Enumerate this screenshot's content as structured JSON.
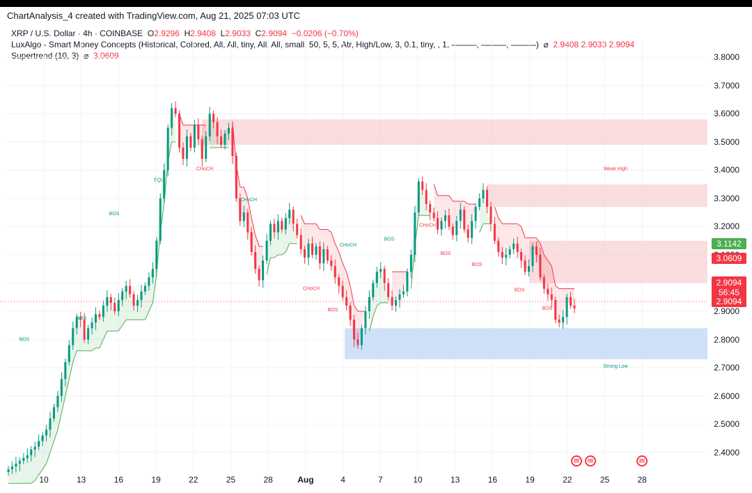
{
  "header": {
    "title": "ChartAnalysis_4 created with TradingView.com, Aug 21, 2025 07:03 UTC"
  },
  "legend": {
    "symbol": "XRP / U.S. Dollar · 4h · COINBASE",
    "o_label": "O",
    "o_value": "2.9296",
    "h_label": "H",
    "h_value": "2.9408",
    "l_label": "L",
    "l_value": "2.9033",
    "c_label": "C",
    "c_value": "2.9094",
    "change": "−0.0206 (−0.70%)",
    "indicator1": "LuxAlgo - Smart Money Concepts (Historical, Colored, All, All, tiny, All, All, small, 50, 5, 5, Atr, High/Low, 3, 0.1, tiny, , 1, ———, ———, ———)",
    "indicator1_symbol": "⌀",
    "indicator1_values": "2.9408  2.9033  2.9094",
    "indicator2": "Supertrend (10, 3)",
    "indicator2_symbol": "⌀",
    "indicator2_value": "3.0609"
  },
  "price_badges": {
    "green": "3.1142",
    "red": "3.0609",
    "current_price": "2.9094",
    "countdown": "56:45",
    "current_price_2": "2.9094"
  },
  "colors": {
    "up": "#089981",
    "down": "#f23645",
    "supertrend_up": "#4caf50",
    "supertrend_down": "#f23645",
    "supply_zone": "#f7c6c9",
    "demand_zone": "#c7dcf7",
    "grid": "#f0f3fa"
  },
  "chart_data": {
    "type": "candlestick",
    "title": "XRP / U.S. Dollar · 4h · COINBASE",
    "ylim": [
      2.33,
      3.86
    ],
    "yticks": [
      "3.8000",
      "3.7000",
      "3.6000",
      "3.5000",
      "3.4000",
      "3.3000",
      "3.2000",
      "3.1000",
      "3.0000",
      "2.9000",
      "2.8000",
      "2.7000",
      "2.6000",
      "2.5000",
      "2.4000"
    ],
    "xticks": [
      "10",
      "13",
      "16",
      "19",
      "22",
      "25",
      "28",
      "Aug",
      "4",
      "7",
      "10",
      "13",
      "16",
      "19",
      "22",
      "25",
      "28"
    ],
    "grid": true,
    "closes": [
      2.34,
      2.35,
      2.36,
      2.37,
      2.38,
      2.39,
      2.41,
      2.42,
      2.44,
      2.46,
      2.48,
      2.52,
      2.56,
      2.6,
      2.66,
      2.72,
      2.78,
      2.84,
      2.88,
      2.87,
      2.8,
      2.84,
      2.86,
      2.89,
      2.88,
      2.92,
      2.95,
      2.93,
      2.9,
      2.94,
      2.97,
      2.99,
      2.96,
      2.92,
      2.94,
      2.97,
      2.99,
      3.02,
      3.05,
      3.15,
      3.3,
      3.4,
      3.55,
      3.62,
      3.6,
      3.48,
      3.44,
      3.52,
      3.48,
      3.56,
      3.51,
      3.44,
      3.52,
      3.6,
      3.57,
      3.52,
      3.49,
      3.53,
      3.55,
      3.45,
      3.3,
      3.22,
      3.25,
      3.18,
      3.11,
      3.05,
      3.01,
      3.08,
      3.15,
      3.21,
      3.18,
      3.22,
      3.19,
      3.23,
      3.26,
      3.21,
      3.17,
      3.12,
      3.09,
      3.14,
      3.1,
      3.13,
      3.07,
      3.12,
      3.08,
      3.06,
      3.02,
      2.99,
      2.95,
      2.92,
      2.87,
      2.8,
      2.78,
      2.84,
      2.9,
      2.95,
      3.0,
      3.04,
      3.05,
      3.0,
      2.95,
      2.92,
      2.94,
      2.96,
      2.97,
      3.04,
      3.1,
      3.25,
      3.36,
      3.33,
      3.28,
      3.25,
      3.23,
      3.19,
      3.22,
      3.24,
      3.2,
      3.17,
      3.22,
      3.26,
      3.19,
      3.16,
      3.22,
      3.27,
      3.3,
      3.33,
      3.27,
      3.21,
      3.15,
      3.11,
      3.09,
      3.1,
      3.12,
      3.14,
      3.11,
      3.08,
      3.04,
      3.06,
      3.13,
      3.1,
      3.02,
      2.98,
      2.96,
      2.94,
      2.87,
      2.86,
      2.88,
      2.95,
      2.92,
      2.91
    ],
    "supertrend": {
      "name": "Supertrend (10, 3)",
      "value": "3.0609"
    },
    "zones": [
      {
        "kind": "supply",
        "from": 3.49,
        "to": 3.58
      },
      {
        "kind": "supply",
        "from": 3.27,
        "to": 3.35
      },
      {
        "kind": "supply",
        "from": 3.0,
        "to": 3.15
      },
      {
        "kind": "demand",
        "from": 2.73,
        "to": 2.84
      }
    ],
    "labels": [
      {
        "text": "BOS",
        "price": 2.795
      },
      {
        "text": "BOS",
        "price": 2.87
      },
      {
        "text": "BOS",
        "price": 3.24
      },
      {
        "text": "EQL",
        "price": 3.36
      },
      {
        "text": "CHoCH",
        "price": 3.4
      },
      {
        "text": "CHoCH",
        "price": 3.29
      },
      {
        "text": "CHoCH",
        "price": 2.975
      },
      {
        "text": "BOS",
        "price": 2.9
      },
      {
        "text": "CHoCH",
        "price": 3.13
      },
      {
        "text": "BOS",
        "price": 3.15
      },
      {
        "text": "CHoCH",
        "price": 3.2
      },
      {
        "text": "BOS",
        "price": 3.1
      },
      {
        "text": "BOS",
        "price": 3.06
      },
      {
        "text": "BOS",
        "price": 2.97
      },
      {
        "text": "BOS",
        "price": 2.905
      },
      {
        "text": "Weak High",
        "price": 3.4
      },
      {
        "text": "Strong Low",
        "price": 2.7
      }
    ]
  }
}
